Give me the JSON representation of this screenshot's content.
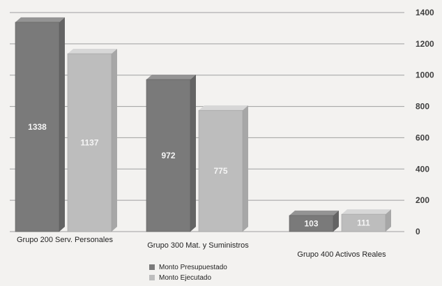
{
  "chart_data": {
    "type": "bar",
    "categories": [
      "Grupo 200 Serv. Personales",
      "Grupo 300 Mat. y Suministros",
      "Grupo 400 Activos Reales"
    ],
    "series": [
      {
        "name": "Monto Presupuestado",
        "values": [
          1338,
          972,
          103
        ],
        "value_labels": [
          "1338",
          "972",
          "103"
        ],
        "color": "#7a7a7a"
      },
      {
        "name": "Monto Ejecutado",
        "values": [
          1137,
          775,
          111
        ],
        "value_labels": [
          "1137",
          "775",
          "111"
        ],
        "color": "#bdbdbd"
      }
    ],
    "y_ticks": [
      "1400",
      "1200",
      "1000",
      "800",
      "600",
      "400",
      "200",
      "0"
    ],
    "ylim": [
      0,
      1400
    ],
    "grid": true,
    "legend_position": "bottom-center",
    "title": "",
    "xlabel": "",
    "ylabel": ""
  }
}
